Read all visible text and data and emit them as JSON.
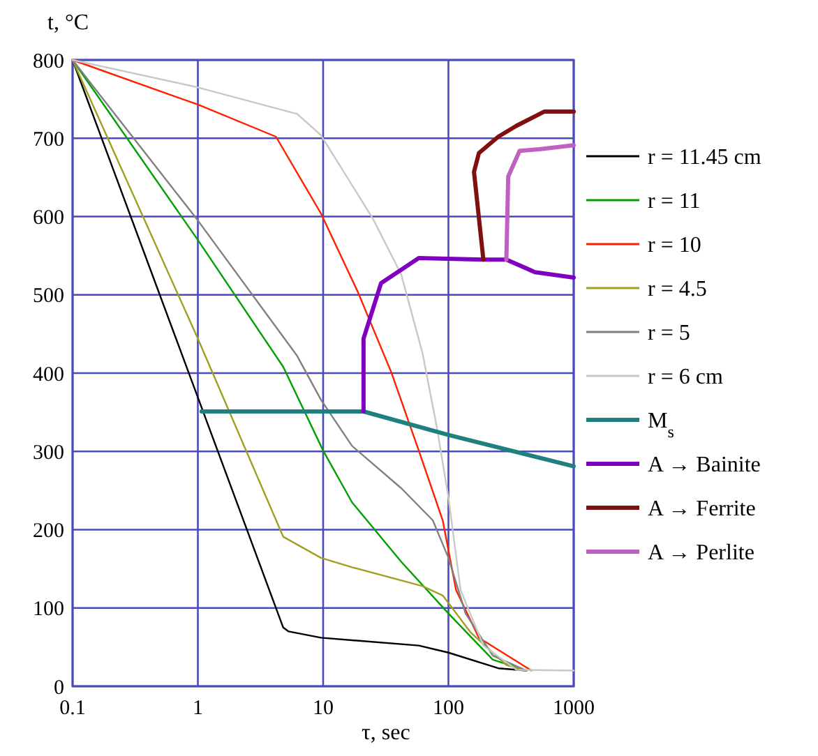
{
  "chart_data": {
    "type": "line",
    "xlabel": "τ, sec",
    "ylabel": "t, °C",
    "log": "x",
    "grid": true,
    "legend": "right",
    "xlim": [
      0.1,
      1000
    ],
    "ylim": [
      0,
      800
    ],
    "xticks": [
      0.1,
      1,
      10,
      100,
      1000
    ],
    "yticks": [
      0,
      100,
      200,
      300,
      400,
      500,
      600,
      700,
      800
    ],
    "series": [
      {
        "name": "r = 11.45 cm",
        "color": "#000000",
        "x": [
          0.1,
          1,
          4.8,
          5.3,
          9.6,
          58,
          100,
          250,
          420
        ],
        "values": [
          800,
          369,
          75,
          70,
          62,
          52,
          43,
          23,
          20
        ]
      },
      {
        "name": "r = 11",
        "color": "#00a000",
        "x": [
          0.1,
          1,
          4.8,
          10,
          17,
          42,
          100,
          226,
          420
        ],
        "values": [
          800,
          570,
          408,
          301,
          235,
          159,
          93,
          34,
          20
        ]
      },
      {
        "name": "r = 10",
        "color": "#ff2000",
        "x": [
          0.1,
          1,
          4.2,
          9.6,
          19,
          35,
          58,
          90,
          115,
          175,
          460
        ],
        "values": [
          800,
          743,
          702,
          604,
          503,
          401,
          301,
          212,
          123,
          62,
          20
        ]
      },
      {
        "name": "r = 4.5",
        "color": "#a0a020",
        "x": [
          0.1,
          1,
          4.8,
          9.6,
          17,
          62,
          90,
          150,
          290,
          420
        ],
        "values": [
          800,
          444,
          191,
          164,
          152,
          128,
          116,
          69,
          27,
          20
        ]
      },
      {
        "name": "r = 5",
        "color": "#808080",
        "x": [
          0.1,
          1,
          6.2,
          9.6,
          17,
          42,
          75,
          100,
          137,
          226,
          420
        ],
        "values": [
          800,
          595,
          422,
          366,
          307,
          253,
          212,
          164,
          93,
          39,
          20
        ]
      },
      {
        "name": "r = 6 cm",
        "color": "#c8c8c8",
        "x": [
          0.1,
          1,
          6.2,
          9.6,
          25,
          42,
          62,
          81,
          100,
          125,
          190,
          350,
          1000
        ],
        "values": [
          800,
          765,
          731,
          704,
          597,
          526,
          426,
          330,
          241,
          123,
          52,
          21,
          20
        ]
      },
      {
        "name": "M$_{s}$",
        "color": "#208080",
        "x": [
          1.07,
          21,
          100,
          1000
        ],
        "values": [
          351,
          351,
          321,
          281
        ]
      },
      {
        "name": "A → Bainite",
        "color": "#8000c0",
        "x": [
          21,
          21,
          29,
          58,
          190,
          290,
          490,
          1000
        ],
        "values": [
          351,
          444,
          515,
          547,
          545,
          545,
          529,
          522
        ]
      },
      {
        "name": "A → Ferrite",
        "color": "#801010",
        "x": [
          190,
          160,
          175,
          250,
          350,
          580,
          1000
        ],
        "values": [
          545,
          657,
          681,
          702,
          716,
          734,
          734
        ]
      },
      {
        "name": "A → Perlite",
        "color": "#c060c0",
        "x": [
          290,
          300,
          370,
          530,
          1000
        ],
        "values": [
          545,
          651,
          684,
          686,
          691
        ]
      }
    ]
  }
}
